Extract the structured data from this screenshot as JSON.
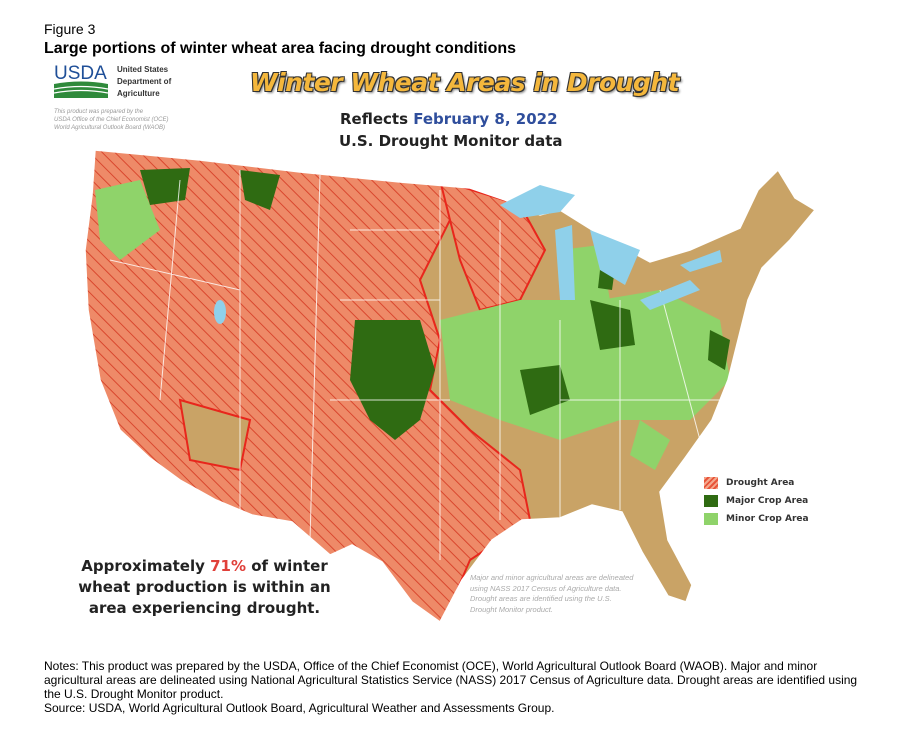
{
  "figure_label": "Figure 3",
  "figure_title": "Large portions of winter wheat area facing drought conditions",
  "logo": {
    "text": "USDA",
    "org_name": "United States\nDepartment of\nAgriculture"
  },
  "prepared_note": "This product was prepared by the\nUSDA Office of the Chief Economist (OCE)\nWorld Agricultural Outlook Board (WAOB)",
  "map_title": "Winter Wheat Areas in Drought",
  "reflects_prefix": "Reflects",
  "reflects_date": "February 8, 2022",
  "data_source_line": "U.S. Drought Monitor data",
  "legend": [
    {
      "label": "Drought Area",
      "color": "#e8553a",
      "style": "hatched"
    },
    {
      "label": "Major Crop Area",
      "color": "#2f6b12"
    },
    {
      "label": "Minor Crop Area",
      "color": "#8fd36a"
    }
  ],
  "colors": {
    "land": "#c9a366",
    "water": "#8fd0ea",
    "drought_outline": "#e8261c",
    "state_borders": "#ffffff"
  },
  "summary": {
    "before": "Approximately ",
    "percent": "71%",
    "after": " of winter wheat production is within an area experiencing drought."
  },
  "map_note": "Major and minor agricultural areas are delineated using NASS 2017 Census of Agriculture data. Drought areas are identified using the U.S. Drought Monitor product.",
  "notes": "Notes: This product was prepared by the USDA, Office of the Chief Economist (OCE), World Agricultural Outlook Board (WAOB). Major and minor agricultural areas are delineated using National Agricultural Statistics Service (NASS) 2017 Census of Agriculture data. Drought areas are identified using the U.S. Drought Monitor product.",
  "source": "Source: USDA, World Agricultural Outlook Board, Agricultural Weather and Assessments Group."
}
